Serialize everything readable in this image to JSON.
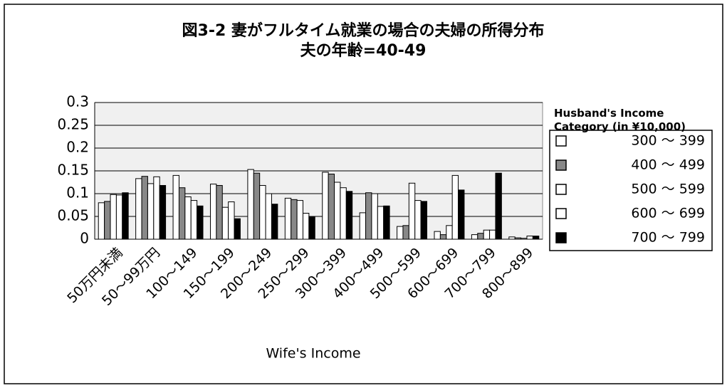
{
  "chart_data": {
    "type": "bar",
    "title": "図3-2  妻がフルタイム就業の場合の夫婦の所得分布",
    "subtitle": "夫の年齢=40-49",
    "x_label": "Wife's Income",
    "legend_title": "Husband's Income Category (in ¥10,000)",
    "categories": [
      "50万円未満",
      "50～99万円",
      "100～149",
      "150～199",
      "200～249",
      "250～299",
      "300～399",
      "400～499",
      "500～599",
      "600～699",
      "700～799",
      "800～899"
    ],
    "series": [
      {
        "name": "300 ～ 399",
        "color": "#ffffff",
        "values": [
          0.08,
          0.133,
          0.14,
          0.121,
          0.153,
          0.09,
          0.147,
          0.058,
          0.028,
          0.017,
          0.01,
          0.005
        ]
      },
      {
        "name": "400 ～ 499",
        "color": "#888888",
        "values": [
          0.083,
          0.138,
          0.113,
          0.118,
          0.145,
          0.087,
          0.143,
          0.102,
          0.03,
          0.01,
          0.013,
          0.003
        ]
      },
      {
        "name": "500 ～ 599",
        "color": "#ffffff",
        "values": [
          0.098,
          0.122,
          0.093,
          0.07,
          0.118,
          0.085,
          0.125,
          0.1,
          0.123,
          0.03,
          0.02,
          0.002
        ]
      },
      {
        "name": "600 ～ 699",
        "color": "#ffffff",
        "values": [
          0.097,
          0.137,
          0.085,
          0.082,
          0.1,
          0.057,
          0.113,
          0.072,
          0.085,
          0.14,
          0.02,
          0.007
        ]
      },
      {
        "name": "700 ～ 799",
        "color": "#000000",
        "values": [
          0.102,
          0.118,
          0.073,
          0.045,
          0.077,
          0.05,
          0.105,
          0.073,
          0.083,
          0.108,
          0.145,
          0.007
        ]
      }
    ],
    "ylim": [
      0,
      0.3
    ],
    "yticks": [
      0,
      0.05,
      0.1,
      0.15,
      0.2,
      0.25,
      0.3
    ],
    "grid": true
  }
}
